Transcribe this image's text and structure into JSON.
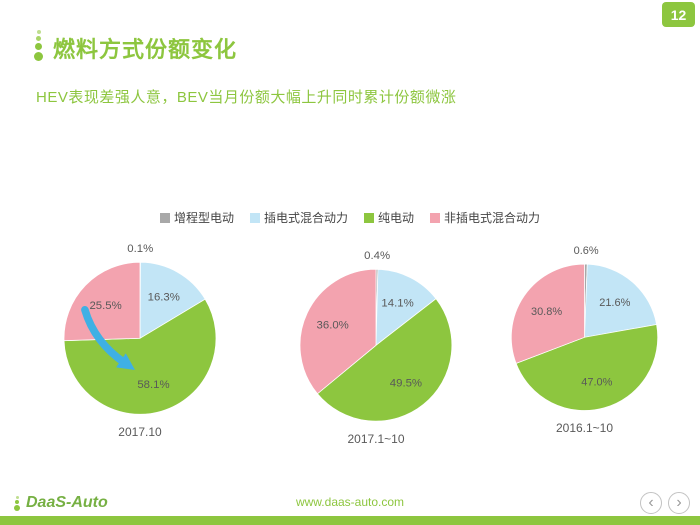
{
  "page": {
    "number": "12"
  },
  "header": {
    "title": "燃料方式份额变化",
    "subtitle": "HEV表现差强人意，BEV当月份额大幅上升同时累计份额微涨"
  },
  "legend": {
    "items": [
      {
        "label": "增程型电动",
        "color": "#A8A8A8"
      },
      {
        "label": "插电式混合动力",
        "color": "#C2E5F6"
      },
      {
        "label": "纯电动",
        "color": "#8DC63F"
      },
      {
        "label": "非插电式混合动力",
        "color": "#F3A3AF"
      }
    ]
  },
  "chart_data": [
    {
      "type": "pie",
      "title": "2017.10",
      "labels": [
        "增程型电动",
        "插电式混合动力",
        "纯电动",
        "非插电式混合动力"
      ],
      "values": [
        0.1,
        16.3,
        58.1,
        25.5
      ],
      "display_labels": [
        "0.1%",
        "16.3%",
        "58.1%",
        "25.5%"
      ],
      "colors": [
        "#A8A8A8",
        "#C2E5F6",
        "#8DC63F",
        "#F3A3AF"
      ],
      "legend_position": "top",
      "highlight_arrow": true,
      "arrow_color": "#3FB0E4"
    },
    {
      "type": "pie",
      "title": "2017.1~10",
      "labels": [
        "增程型电动",
        "插电式混合动力",
        "纯电动",
        "非插电式混合动力"
      ],
      "values": [
        0.4,
        14.1,
        49.5,
        36.0
      ],
      "display_labels": [
        "0.4%",
        "14.1%",
        "49.5%",
        "36.0%"
      ],
      "colors": [
        "#A8A8A8",
        "#C2E5F6",
        "#8DC63F",
        "#F3A3AF"
      ],
      "legend_position": "top",
      "highlight_arrow": false
    },
    {
      "type": "pie",
      "title": "2016.1~10",
      "labels": [
        "增程型电动",
        "插电式混合动力",
        "纯电动",
        "非插电式混合动力"
      ],
      "values": [
        0.6,
        21.6,
        47.0,
        30.8
      ],
      "display_labels": [
        "0.6%",
        "21.6%",
        "47.0%",
        "30.8%"
      ],
      "colors": [
        "#A8A8A8",
        "#C2E5F6",
        "#8DC63F",
        "#F3A3AF"
      ],
      "legend_position": "top",
      "highlight_arrow": false
    }
  ],
  "footer": {
    "logo": "DaaS-Auto",
    "url": "www.daas-auto.com",
    "nav": {
      "prev": "‹",
      "next": "›"
    }
  }
}
